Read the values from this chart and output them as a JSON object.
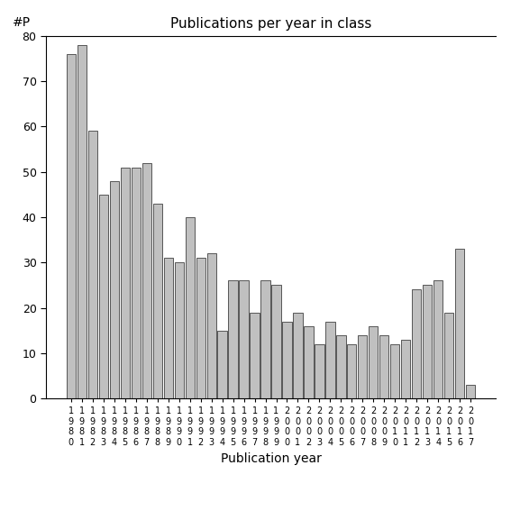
{
  "title": "Publications per year in class",
  "xlabel": "Publication year",
  "ylabel": "#P",
  "years": [
    1980,
    1981,
    1982,
    1983,
    1984,
    1985,
    1986,
    1987,
    1988,
    1989,
    1990,
    1991,
    1992,
    1993,
    1994,
    1995,
    1996,
    1997,
    1998,
    1999,
    2000,
    2001,
    2002,
    2003,
    2004,
    2005,
    2006,
    2007,
    2008,
    2009,
    2010,
    2011,
    2012,
    2013,
    2014,
    2015,
    2016,
    2017
  ],
  "values": [
    76,
    78,
    59,
    45,
    48,
    51,
    51,
    52,
    43,
    31,
    30,
    40,
    31,
    32,
    15,
    26,
    26,
    19,
    26,
    25,
    17,
    19,
    16,
    12,
    17,
    14,
    12,
    14,
    16,
    14,
    12,
    13,
    24,
    25,
    26,
    19,
    33,
    3
  ],
  "bar_color": "#c0c0c0",
  "bar_edge_color": "#404040",
  "ylim": [
    0,
    80
  ],
  "yticks": [
    0,
    10,
    20,
    30,
    40,
    50,
    60,
    70,
    80
  ],
  "figsize": [
    5.67,
    5.67
  ],
  "dpi": 100,
  "title_fontsize": 11,
  "xlabel_fontsize": 10,
  "ylabel_fontsize": 10,
  "tick_fontsize": 9,
  "xtick_fontsize": 7
}
